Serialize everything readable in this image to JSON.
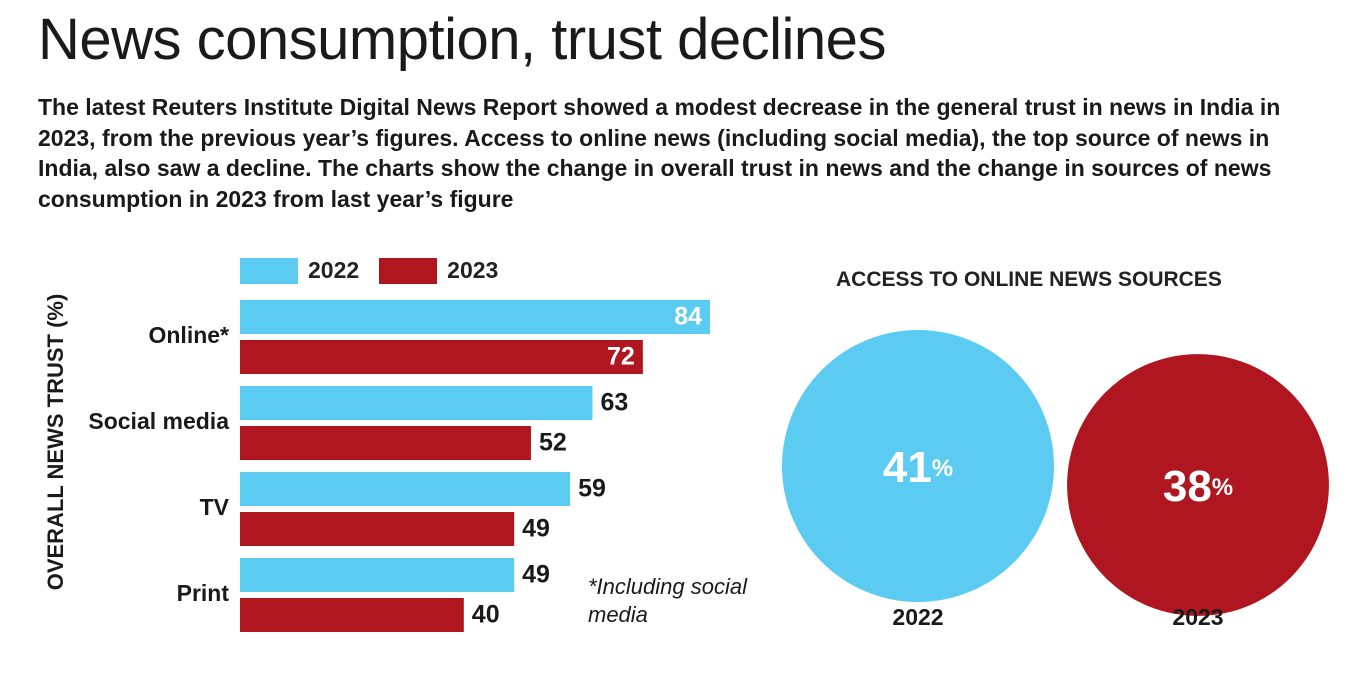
{
  "title": "News consumption, trust declines",
  "subtitle": "The latest Reuters Institute Digital News Report showed a modest decrease in the general trust in news in India in 2023, from the previous year’s figures. Access to online news (including social media), the top source of news in India, also saw a decline. The charts show the change in overall trust in news and the change in sources of news consumption in 2023 from last year’s figure",
  "colors": {
    "y2022": "#5ccbf2",
    "y2023": "#b0161f"
  },
  "chart_data": [
    {
      "type": "bar",
      "orientation": "horizontal",
      "ylabel": "OVERALL NEWS TRUST (%)",
      "legend": [
        "2022",
        "2023"
      ],
      "legend_position": "top",
      "categories": [
        "Online*",
        "Social media",
        "TV",
        "Print"
      ],
      "series": [
        {
          "name": "2022",
          "values": [
            84,
            63,
            59,
            49
          ]
        },
        {
          "name": "2023",
          "values": [
            72,
            52,
            49,
            40
          ]
        }
      ],
      "xlim": [
        0,
        84
      ],
      "grid": false,
      "annotation": "*Including social media"
    },
    {
      "type": "bubble",
      "title": "ACCESS TO ONLINE NEWS SOURCES",
      "categories": [
        "2022",
        "2023"
      ],
      "values": [
        41,
        38
      ],
      "unit": "%"
    }
  ]
}
